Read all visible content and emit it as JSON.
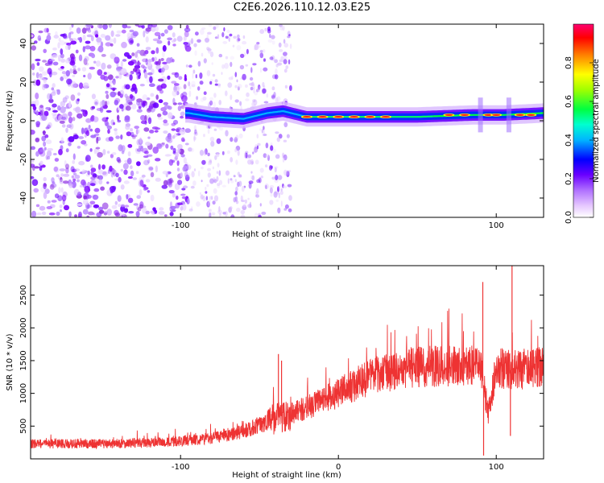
{
  "title": "C2E6.2026.110.12.03.E25",
  "chart_data": [
    {
      "type": "heatmap",
      "name": "spectrogram",
      "xlabel": "Height of straight line (km)",
      "ylabel": "Frequency (Hz)",
      "xlim": [
        -195,
        130
      ],
      "ylim": [
        -50,
        50
      ],
      "xticks": [
        -100,
        0,
        100
      ],
      "xtick_labels": [
        "-100",
        "0",
        "100"
      ],
      "yticks": [
        -40,
        -20,
        0,
        20,
        40
      ],
      "ytick_labels": [
        "-40",
        "-20",
        "0",
        "20",
        "40"
      ],
      "colorbar": {
        "label": "Normalized spectral amplitude",
        "range": [
          0,
          1
        ],
        "ticks": [
          0,
          0.2,
          0.4,
          0.6,
          0.8
        ],
        "tick_labels": [
          "0.0",
          "0.2",
          "0.4",
          "0.6",
          "0.8"
        ],
        "colormap": [
          "#ffffff",
          "#e6c8ff",
          "#9b30ff",
          "#5000ff",
          "#0000ff",
          "#00c8ff",
          "#00ff80",
          "#80ff00",
          "#ffff00",
          "#ff8000",
          "#ff0000",
          "#ff0080"
        ]
      },
      "ridge": {
        "description_points_x": [
          -95,
          -80,
          -60,
          -45,
          -35,
          -20,
          0,
          20,
          50,
          85,
          90,
          105,
          130
        ],
        "description_points_y": [
          4,
          2,
          1,
          4,
          5,
          2,
          2,
          2,
          2,
          3,
          3,
          3,
          4
        ]
      }
    },
    {
      "type": "line",
      "name": "snr",
      "xlabel": "Height of straight line (km)",
      "ylabel": "SNR (10 * v/v)",
      "xlim": [
        -195,
        130
      ],
      "ylim": [
        0,
        2950
      ],
      "xticks": [
        -100,
        0,
        100
      ],
      "xtick_labels": [
        "-100",
        "0",
        "100"
      ],
      "yticks": [
        500,
        1000,
        1500,
        2000,
        2500
      ],
      "ytick_labels": [
        "500",
        "1000",
        "1500",
        "2000",
        "2500"
      ],
      "color": "#ee3333",
      "trend_x": [
        -195,
        -150,
        -110,
        -80,
        -60,
        -40,
        -20,
        0,
        20,
        40,
        60,
        80,
        90,
        95,
        100,
        110,
        130
      ],
      "trend_y": [
        230,
        230,
        250,
        320,
        420,
        620,
        780,
        1000,
        1250,
        1380,
        1420,
        1420,
        1400,
        700,
        1400,
        1350,
        1420
      ],
      "spikes": [
        {
          "x": 91.5,
          "y": 2700
        },
        {
          "x": 92.0,
          "y": 50
        },
        {
          "x": 110.0,
          "y": 2950
        },
        {
          "x": 109.0,
          "y": 350
        },
        {
          "x": -38,
          "y": 1600
        },
        {
          "x": -36,
          "y": 1500
        }
      ]
    }
  ]
}
